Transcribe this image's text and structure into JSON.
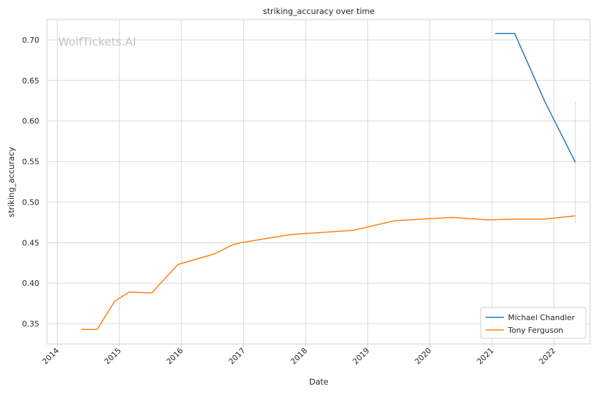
{
  "chart_data": {
    "type": "line",
    "title": "striking_accuracy over time",
    "xlabel": "Date",
    "ylabel": "striking_accuracy",
    "watermark": "WolfTickets.AI",
    "xlim": [
      "2013-11-01",
      "2022-08-01"
    ],
    "ylim": [
      0.325,
      0.725
    ],
    "x_ticks": [
      "2014",
      "2015",
      "2016",
      "2017",
      "2018",
      "2019",
      "2020",
      "2021",
      "2022"
    ],
    "y_ticks": [
      "0.35",
      "0.40",
      "0.45",
      "0.50",
      "0.55",
      "0.60",
      "0.65",
      "0.70"
    ],
    "grid": true,
    "legend_position": "bottom-right",
    "series": [
      {
        "name": "Michael Chandler",
        "color": "#1f77b4",
        "points": [
          {
            "date": "2021-01-20",
            "value": 0.708
          },
          {
            "date": "2021-05-15",
            "value": 0.708
          },
          {
            "date": "2021-11-06",
            "value": 0.625
          },
          {
            "date": "2022-05-07",
            "value": 0.549
          }
        ],
        "confidence_band": {
          "date": "2022-05-07",
          "low": 0.474,
          "high": 0.624
        }
      },
      {
        "name": "Tony Ferguson",
        "color": "#ff7f0e",
        "points": [
          {
            "date": "2014-05-24",
            "value": 0.343
          },
          {
            "date": "2014-08-23",
            "value": 0.343
          },
          {
            "date": "2014-12-06",
            "value": 0.378
          },
          {
            "date": "2015-02-28",
            "value": 0.389
          },
          {
            "date": "2015-07-11",
            "value": 0.388
          },
          {
            "date": "2015-12-11",
            "value": 0.423
          },
          {
            "date": "2016-07-13",
            "value": 0.436
          },
          {
            "date": "2016-11-05",
            "value": 0.448
          },
          {
            "date": "2017-01-15",
            "value": 0.451
          },
          {
            "date": "2017-10-07",
            "value": 0.46
          },
          {
            "date": "2018-10-06",
            "value": 0.465
          },
          {
            "date": "2019-06-08",
            "value": 0.477
          },
          {
            "date": "2020-05-09",
            "value": 0.481
          },
          {
            "date": "2020-12-12",
            "value": 0.478
          },
          {
            "date": "2021-05-15",
            "value": 0.479
          },
          {
            "date": "2021-11-06",
            "value": 0.479
          },
          {
            "date": "2022-05-07",
            "value": 0.483
          }
        ]
      }
    ]
  }
}
